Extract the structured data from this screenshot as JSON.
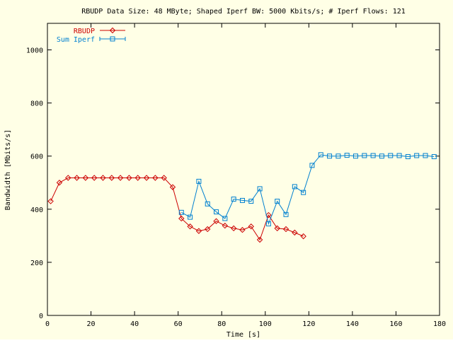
{
  "chart_data": {
    "type": "line",
    "title": "RBUDP Data Size: 48 MByte; Shaped Iperf BW: 5000 Kbits/s; # Iperf Flows: 121",
    "xlabel": "Time [s]",
    "ylabel": "Bandwidth [Mbits/s]",
    "xlim": [
      0,
      180
    ],
    "ylim": [
      0,
      1100
    ],
    "xticks": [
      0,
      20,
      40,
      60,
      80,
      100,
      120,
      140,
      160,
      180
    ],
    "yticks": [
      0,
      200,
      400,
      600,
      800,
      1000
    ],
    "grid": false,
    "legend_position": "top-left",
    "background": "#ffffe6",
    "series": [
      {
        "name": "RBUDP",
        "color": "#cc0000",
        "marker": "diamond",
        "x": [
          1.5,
          5.5,
          9.5,
          13.5,
          17.5,
          21.5,
          25.5,
          29.5,
          33.5,
          37.5,
          41.5,
          45.5,
          49.5,
          53.5,
          57.5,
          61.5,
          65.5,
          69.5,
          73.5,
          77.5,
          81.5,
          85.5,
          89.5,
          93.5,
          97.5,
          101.5,
          105.5,
          109.5,
          113.5,
          117.5
        ],
        "y": [
          430,
          500,
          518,
          518,
          518,
          518,
          518,
          518,
          518,
          518,
          518,
          518,
          518,
          518,
          483,
          365,
          335,
          318,
          325,
          355,
          338,
          328,
          322,
          335,
          285,
          378,
          328,
          325,
          312,
          298
        ]
      },
      {
        "name": "Sum Iperf",
        "color": "#0080d0",
        "marker": "square",
        "x": [
          61.5,
          65.5,
          69.5,
          73.5,
          77.5,
          81.5,
          85.5,
          89.5,
          93.5,
          97.5,
          101.5,
          105.5,
          109.5,
          113.5,
          117.5,
          121.5,
          125.5,
          129.5,
          133.5,
          137.5,
          141.5,
          145.5,
          149.5,
          153.5,
          157.5,
          161.5,
          165.5,
          169.5,
          173.5,
          177.5
        ],
        "y": [
          388,
          370,
          505,
          420,
          390,
          365,
          438,
          433,
          430,
          477,
          345,
          430,
          380,
          485,
          463,
          565,
          605,
          600,
          600,
          603,
          600,
          602,
          602,
          600,
          602,
          602,
          598,
          602,
          602,
          598
        ]
      }
    ]
  }
}
